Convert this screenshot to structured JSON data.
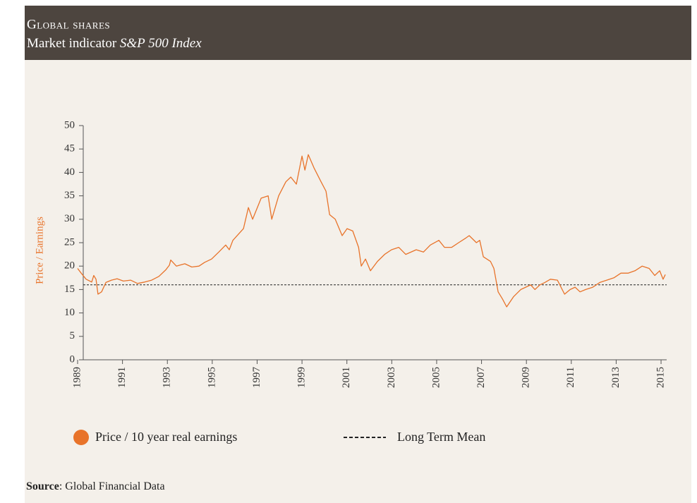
{
  "chart_data": {
    "type": "line",
    "title": "Global shares",
    "subtitle": "Market indicator",
    "subtitle_italic": "S&P 500 Index",
    "ylabel": "Price / Earnings",
    "source_label": "Source",
    "source_text": ": Global Financial Data",
    "xlim": [
      1989,
      2015.25
    ],
    "ylim": [
      0,
      50
    ],
    "xticks": [
      1989,
      1991,
      1993,
      1995,
      1997,
      1999,
      2001,
      2003,
      2005,
      2007,
      2009,
      2011,
      2013,
      2015
    ],
    "yticks": [
      0,
      5,
      10,
      15,
      20,
      25,
      30,
      35,
      40,
      45,
      50
    ],
    "series": [
      {
        "name": "Price / 10 year real earnings",
        "color": "#e8732a",
        "x": [
          1989.0,
          1989.16,
          1989.38,
          1989.63,
          1989.72,
          1989.82,
          1989.91,
          1990.07,
          1990.26,
          1990.51,
          1990.76,
          1991.04,
          1991.36,
          1991.67,
          1991.99,
          1992.3,
          1992.62,
          1992.93,
          1993.09,
          1993.15,
          1993.4,
          1993.78,
          1994.09,
          1994.41,
          1994.66,
          1994.97,
          1995.29,
          1995.6,
          1995.76,
          1995.92,
          1996.39,
          1996.61,
          1996.8,
          1997.18,
          1997.49,
          1997.65,
          1997.96,
          1998.28,
          1998.5,
          1998.75,
          1999.0,
          1999.13,
          1999.28,
          1999.53,
          1999.85,
          2000.07,
          2000.23,
          2000.48,
          2000.79,
          2001.01,
          2001.26,
          2001.52,
          2001.64,
          2001.83,
          2002.05,
          2002.36,
          2002.68,
          2002.99,
          2003.31,
          2003.62,
          2004.09,
          2004.41,
          2004.72,
          2005.1,
          2005.35,
          2005.67,
          2005.98,
          2006.3,
          2006.45,
          2006.77,
          2006.92,
          2007.08,
          2007.4,
          2007.55,
          2007.74,
          2007.93,
          2008.12,
          2008.43,
          2008.75,
          2008.97,
          2009.19,
          2009.38,
          2009.6,
          2009.82,
          2010.07,
          2010.38,
          2010.7,
          2010.95,
          2011.17,
          2011.39,
          2011.64,
          2011.96,
          2012.27,
          2012.58,
          2012.9,
          2013.21,
          2013.53,
          2013.84,
          2014.16,
          2014.47,
          2014.72,
          2014.94,
          2015.09,
          2015.19
        ],
        "values": [
          19.5,
          18.5,
          17.2,
          16.6,
          18.0,
          17.2,
          14.0,
          14.5,
          16.5,
          17.0,
          17.3,
          16.8,
          17.0,
          16.3,
          16.6,
          17.0,
          17.8,
          19.2,
          20.2,
          21.3,
          20.0,
          20.5,
          19.8,
          20.0,
          20.8,
          21.5,
          23.0,
          24.5,
          23.5,
          25.5,
          28.0,
          32.5,
          30.0,
          34.5,
          35.0,
          30.0,
          35.0,
          38.0,
          39.0,
          37.5,
          43.5,
          40.5,
          43.8,
          41.0,
          38.0,
          36.0,
          31.0,
          30.0,
          26.5,
          28.0,
          27.5,
          24.0,
          20.0,
          21.5,
          19.0,
          21.0,
          22.5,
          23.5,
          24.0,
          22.5,
          23.5,
          23.0,
          24.5,
          25.5,
          24.0,
          24.0,
          25.0,
          26.0,
          26.5,
          25.0,
          25.5,
          22.0,
          21.0,
          19.5,
          14.5,
          13.0,
          11.3,
          13.5,
          15.0,
          15.5,
          16.0,
          15.0,
          16.0,
          16.5,
          17.2,
          17.0,
          14.0,
          15.0,
          15.5,
          14.5,
          15.0,
          15.5,
          16.5,
          17.0,
          17.5,
          18.5,
          18.5,
          19.0,
          20.0,
          19.5,
          18.0,
          19.0,
          17.2,
          18.2
        ]
      }
    ],
    "reference_line": {
      "name": "Long Term Mean",
      "value": 16,
      "color": "#222222"
    }
  }
}
